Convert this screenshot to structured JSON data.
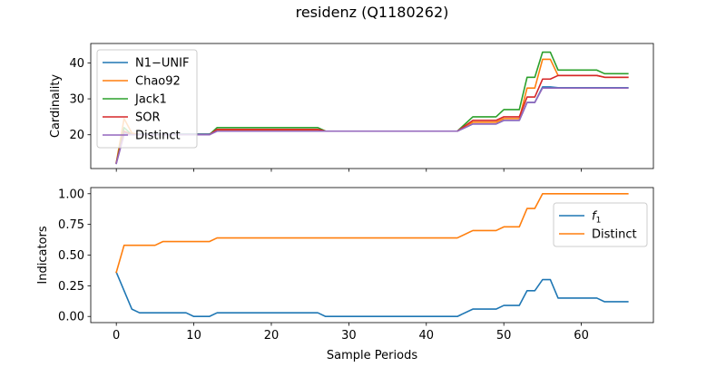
{
  "title": "residenz (Q1180262)",
  "chart_data": [
    {
      "type": "line",
      "ylabel": "Cardinality",
      "xlabel": "",
      "xlim": [
        -3.3,
        69.3
      ],
      "ylim": [
        10.6,
        45.4
      ],
      "yticks": [
        20,
        30,
        40
      ],
      "xticks": [
        0,
        10,
        20,
        30,
        40,
        50,
        60
      ],
      "show_xticklabels": false,
      "legend_position": "upper left",
      "series": [
        {
          "name": "N1−UNIF",
          "color": "#1f77b4",
          "x": [
            0,
            1,
            2,
            12,
            13,
            26,
            27,
            44,
            46,
            49,
            50,
            52,
            53,
            54,
            55,
            56,
            57,
            66
          ],
          "y": [
            12.2,
            20.5,
            20.2,
            20.2,
            21.0,
            21.0,
            21.0,
            21.0,
            23.0,
            23.0,
            24.0,
            24.0,
            29.0,
            29.0,
            33.3,
            33.3,
            33.1,
            33.1
          ]
        },
        {
          "name": "Chao92",
          "color": "#ff7f0e",
          "x": [
            0,
            1,
            2,
            3,
            12,
            13,
            26,
            27,
            44,
            46,
            49,
            50,
            52,
            53,
            54,
            55,
            56,
            57,
            62,
            63,
            66
          ],
          "y": [
            12.2,
            24.5,
            20.5,
            20.0,
            20.0,
            21.2,
            21.2,
            21.0,
            21.0,
            23.5,
            23.5,
            24.5,
            24.5,
            33.0,
            33.0,
            41.0,
            41.0,
            36.5,
            36.5,
            36.0,
            36.0
          ]
        },
        {
          "name": "Jack1",
          "color": "#2ca02c",
          "x": [
            0,
            1,
            2,
            12,
            13,
            26,
            27,
            44,
            46,
            49,
            50,
            52,
            53,
            54,
            55,
            56,
            57,
            62,
            63,
            66
          ],
          "y": [
            12.2,
            22.0,
            20.0,
            20.0,
            22.0,
            22.0,
            21.0,
            21.0,
            25.0,
            25.0,
            27.0,
            27.0,
            36.0,
            36.0,
            43.0,
            43.0,
            38.0,
            38.0,
            37.0,
            37.0
          ]
        },
        {
          "name": "SOR",
          "color": "#d62728",
          "x": [
            0,
            1,
            2,
            12,
            13,
            26,
            27,
            44,
            46,
            49,
            50,
            52,
            53,
            54,
            55,
            56,
            57,
            62,
            63,
            66
          ],
          "y": [
            12.2,
            21.0,
            20.0,
            20.0,
            21.5,
            21.5,
            21.0,
            21.0,
            24.0,
            24.0,
            25.0,
            25.0,
            30.5,
            30.5,
            35.5,
            35.5,
            36.5,
            36.5,
            36.0,
            36.0
          ]
        },
        {
          "name": "Distinct",
          "color": "#9467bd",
          "x": [
            0,
            1,
            2,
            12,
            13,
            26,
            27,
            44,
            46,
            49,
            50,
            52,
            53,
            54,
            55,
            56,
            57,
            66
          ],
          "y": [
            12.0,
            20.0,
            20.0,
            20.0,
            21.0,
            21.0,
            21.0,
            21.0,
            23.0,
            23.0,
            24.0,
            24.0,
            29.0,
            29.0,
            33.0,
            33.0,
            33.0,
            33.0
          ]
        }
      ]
    },
    {
      "type": "line",
      "ylabel": "Indicators",
      "xlabel": "Sample Periods",
      "xlim": [
        -3.3,
        69.3
      ],
      "ylim": [
        -0.05,
        1.05
      ],
      "yticks": [
        "0.00",
        "0.25",
        "0.50",
        "0.75",
        "1.00"
      ],
      "xticks": [
        0,
        10,
        20,
        30,
        40,
        50,
        60
      ],
      "show_xticklabels": true,
      "legend_position": "upper right",
      "series": [
        {
          "name": "f_1",
          "label_main": "f",
          "label_sub": "1",
          "color": "#1f77b4",
          "x": [
            0,
            2,
            3,
            9,
            10,
            12,
            13,
            26,
            27,
            44,
            46,
            49,
            50,
            52,
            53,
            54,
            55,
            56,
            57,
            62,
            63,
            66
          ],
          "y": [
            0.36,
            0.06,
            0.03,
            0.03,
            0.0,
            0.0,
            0.03,
            0.03,
            0.0,
            0.0,
            0.06,
            0.06,
            0.09,
            0.09,
            0.21,
            0.21,
            0.3,
            0.3,
            0.15,
            0.15,
            0.12,
            0.12
          ]
        },
        {
          "name": "Distinct",
          "color": "#ff7f0e",
          "x": [
            0,
            1,
            5,
            6,
            12,
            13,
            44,
            46,
            49,
            50,
            52,
            53,
            54,
            55,
            66
          ],
          "y": [
            0.36,
            0.58,
            0.58,
            0.61,
            0.61,
            0.64,
            0.64,
            0.7,
            0.7,
            0.73,
            0.73,
            0.88,
            0.88,
            1.0,
            1.0
          ]
        }
      ]
    }
  ]
}
